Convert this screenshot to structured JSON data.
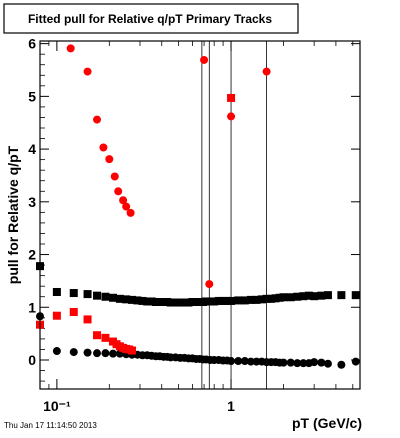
{
  "chart_data": {
    "type": "scatter",
    "title": "Fitted pull for Relative q/pT  Primary Tracks",
    "xlabel": "pT (GeV/c)",
    "ylabel": "pull for Relative q/pT",
    "footer": "Thu Jan 17 11:14:50 2013",
    "x_scale": "log",
    "xlim": [
      0.08,
      5.5
    ],
    "ylim": [
      -0.55,
      6.05
    ],
    "x_tick_labels": [
      "10⁻¹",
      "1"
    ],
    "y_tick_labels": [
      "0",
      "1",
      "2",
      "3",
      "4",
      "5",
      "6"
    ],
    "y_ticks": [
      0,
      1,
      2,
      3,
      4,
      5,
      6
    ],
    "x_major_ticks": [
      0.1,
      1
    ],
    "x_minor_ticks": [
      0.08,
      0.09,
      0.2,
      0.3,
      0.4,
      0.5,
      0.6,
      0.7,
      0.8,
      0.9,
      2,
      3,
      4,
      5
    ],
    "vertical_lines_x": [
      0.68,
      0.75,
      1.0,
      1.6
    ],
    "colors": {
      "black": "#000000",
      "red": "#ff0000",
      "frame": "#000000"
    },
    "series": [
      {
        "marker": "square",
        "color": "#000000",
        "x": [
          0.08,
          0.1,
          0.125,
          0.15,
          0.17,
          0.19,
          0.21,
          0.23,
          0.25,
          0.27,
          0.29,
          0.31,
          0.33,
          0.35,
          0.37,
          0.39,
          0.41,
          0.43,
          0.45,
          0.48,
          0.51,
          0.54,
          0.57,
          0.6,
          0.63,
          0.66,
          0.69,
          0.72,
          0.76,
          0.8,
          0.85,
          0.9,
          0.95,
          1.0,
          1.1,
          1.2,
          1.3,
          1.4,
          1.5,
          1.6,
          1.7,
          1.8,
          1.9,
          2.0,
          2.2,
          2.4,
          2.6,
          2.8,
          3.0,
          3.3,
          3.6,
          4.3,
          5.2
        ],
        "y": [
          1.78,
          1.29,
          1.27,
          1.25,
          1.22,
          1.2,
          1.18,
          1.16,
          1.15,
          1.14,
          1.13,
          1.12,
          1.11,
          1.11,
          1.1,
          1.1,
          1.1,
          1.1,
          1.09,
          1.09,
          1.09,
          1.09,
          1.09,
          1.1,
          1.1,
          1.1,
          1.1,
          1.11,
          1.11,
          1.11,
          1.12,
          1.12,
          1.12,
          1.12,
          1.13,
          1.13,
          1.14,
          1.14,
          1.15,
          1.16,
          1.16,
          1.17,
          1.18,
          1.19,
          1.19,
          1.2,
          1.21,
          1.22,
          1.21,
          1.22,
          1.23,
          1.23,
          1.23
        ]
      },
      {
        "marker": "circle",
        "color": "#000000",
        "x": [
          0.08,
          0.1,
          0.125,
          0.15,
          0.17,
          0.19,
          0.21,
          0.23,
          0.25,
          0.27,
          0.29,
          0.31,
          0.33,
          0.35,
          0.37,
          0.39,
          0.41,
          0.43,
          0.45,
          0.48,
          0.51,
          0.54,
          0.57,
          0.6,
          0.63,
          0.66,
          0.69,
          0.72,
          0.76,
          0.8,
          0.85,
          0.9,
          0.95,
          1.0,
          1.1,
          1.2,
          1.3,
          1.4,
          1.5,
          1.6,
          1.7,
          1.8,
          1.9,
          2.0,
          2.2,
          2.4,
          2.6,
          2.8,
          3.0,
          3.3,
          3.6,
          4.3,
          5.2
        ],
        "y": [
          0.83,
          0.17,
          0.15,
          0.14,
          0.13,
          0.13,
          0.12,
          0.12,
          0.11,
          0.1,
          0.1,
          0.09,
          0.09,
          0.08,
          0.07,
          0.07,
          0.06,
          0.06,
          0.05,
          0.05,
          0.04,
          0.04,
          0.03,
          0.03,
          0.02,
          0.02,
          0.01,
          0.01,
          0.0,
          0.0,
          0.0,
          -0.01,
          -0.01,
          -0.02,
          -0.02,
          -0.02,
          -0.03,
          -0.03,
          -0.03,
          -0.04,
          -0.04,
          -0.04,
          -0.05,
          -0.05,
          -0.05,
          -0.06,
          -0.06,
          -0.06,
          -0.04,
          -0.05,
          -0.07,
          -0.09,
          -0.03
        ]
      },
      {
        "marker": "square",
        "color": "#ff0000",
        "x": [
          0.08,
          0.1,
          0.125,
          0.15,
          0.17,
          0.19,
          0.21,
          0.22,
          0.23,
          0.24,
          0.25,
          0.26,
          0.27,
          1.0
        ],
        "y": [
          0.67,
          0.84,
          0.91,
          0.77,
          0.47,
          0.42,
          0.35,
          0.3,
          0.26,
          0.23,
          0.21,
          0.2,
          0.18,
          4.97
        ]
      },
      {
        "marker": "circle",
        "color": "#ff0000",
        "x": [
          0.12,
          0.15,
          0.17,
          0.185,
          0.2,
          0.215,
          0.225,
          0.24,
          0.25,
          0.265,
          0.7,
          0.75,
          1.0,
          1.6
        ],
        "y": [
          5.91,
          5.47,
          4.56,
          4.03,
          3.81,
          3.48,
          3.2,
          3.03,
          2.91,
          2.79,
          5.69,
          1.44,
          4.62,
          5.47
        ]
      }
    ]
  }
}
